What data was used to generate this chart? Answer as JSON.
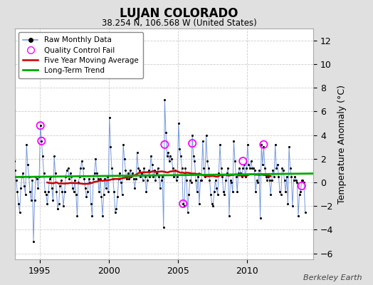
{
  "title": "LUJAN COLORADO",
  "subtitle": "38.254 N, 106.568 W (United States)",
  "ylabel": "Temperature Anomaly (°C)",
  "credit": "Berkeley Earth",
  "xlim": [
    1993.2,
    2014.8
  ],
  "ylim": [
    -6.5,
    13.0
  ],
  "yticks": [
    -6,
    -4,
    -2,
    0,
    2,
    4,
    6,
    8,
    10,
    12
  ],
  "xticks": [
    1995,
    2000,
    2005,
    2010
  ],
  "fig_bg_color": "#e0e0e0",
  "plot_bg": "#ffffff",
  "raw_line_color": "#7799dd",
  "raw_dot_color": "#000000",
  "ma_color": "#cc0000",
  "trend_color": "#00aa00",
  "qc_color": "#ff00ff",
  "raw_data": [
    [
      1993.042,
      3.5
    ],
    [
      1993.125,
      1.8
    ],
    [
      1993.208,
      1.0
    ],
    [
      1993.292,
      0.2
    ],
    [
      1993.375,
      -0.8
    ],
    [
      1993.458,
      -1.8
    ],
    [
      1993.542,
      -2.5
    ],
    [
      1993.625,
      -0.5
    ],
    [
      1993.708,
      0.5
    ],
    [
      1993.792,
      0.8
    ],
    [
      1993.875,
      -0.3
    ],
    [
      1993.958,
      -1.0
    ],
    [
      1994.042,
      3.2
    ],
    [
      1994.125,
      1.5
    ],
    [
      1994.208,
      0.5
    ],
    [
      1994.292,
      -0.8
    ],
    [
      1994.375,
      -1.5
    ],
    [
      1994.458,
      0.2
    ],
    [
      1994.542,
      -5.0
    ],
    [
      1994.625,
      -1.5
    ],
    [
      1994.708,
      0.5
    ],
    [
      1994.792,
      0.3
    ],
    [
      1994.875,
      -0.5
    ],
    [
      1994.958,
      0.5
    ],
    [
      1995.042,
      4.8
    ],
    [
      1995.125,
      3.5
    ],
    [
      1995.208,
      2.2
    ],
    [
      1995.292,
      0.8
    ],
    [
      1995.375,
      -0.8
    ],
    [
      1995.458,
      -1.0
    ],
    [
      1995.542,
      -1.8
    ],
    [
      1995.625,
      -0.8
    ],
    [
      1995.708,
      0.3
    ],
    [
      1995.792,
      0.5
    ],
    [
      1995.875,
      -0.5
    ],
    [
      1995.958,
      -1.5
    ],
    [
      1996.042,
      2.2
    ],
    [
      1996.125,
      0.8
    ],
    [
      1996.208,
      -0.8
    ],
    [
      1996.292,
      -2.2
    ],
    [
      1996.375,
      -1.8
    ],
    [
      1996.458,
      -0.3
    ],
    [
      1996.542,
      0.2
    ],
    [
      1996.625,
      -0.8
    ],
    [
      1996.708,
      -2.0
    ],
    [
      1996.792,
      -0.8
    ],
    [
      1996.875,
      0.5
    ],
    [
      1996.958,
      1.0
    ],
    [
      1997.042,
      1.2
    ],
    [
      1997.125,
      0.3
    ],
    [
      1997.208,
      0.8
    ],
    [
      1997.292,
      0.5
    ],
    [
      1997.375,
      -0.5
    ],
    [
      1997.458,
      -0.8
    ],
    [
      1997.542,
      0.2
    ],
    [
      1997.625,
      -1.0
    ],
    [
      1997.708,
      -2.8
    ],
    [
      1997.792,
      0.0
    ],
    [
      1997.875,
      0.5
    ],
    [
      1997.958,
      1.2
    ],
    [
      1998.042,
      1.8
    ],
    [
      1998.125,
      1.2
    ],
    [
      1998.208,
      0.3
    ],
    [
      1998.292,
      -0.5
    ],
    [
      1998.375,
      -1.2
    ],
    [
      1998.458,
      -0.8
    ],
    [
      1998.542,
      0.3
    ],
    [
      1998.625,
      0.0
    ],
    [
      1998.708,
      -1.8
    ],
    [
      1998.792,
      -2.8
    ],
    [
      1998.875,
      0.3
    ],
    [
      1998.958,
      0.8
    ],
    [
      1999.042,
      2.0
    ],
    [
      1999.125,
      0.8
    ],
    [
      1999.208,
      0.3
    ],
    [
      1999.292,
      -0.8
    ],
    [
      1999.375,
      0.3
    ],
    [
      1999.458,
      -1.2
    ],
    [
      1999.542,
      -2.8
    ],
    [
      1999.625,
      -1.0
    ],
    [
      1999.708,
      0.3
    ],
    [
      1999.792,
      -0.5
    ],
    [
      1999.875,
      0.5
    ],
    [
      1999.958,
      -0.8
    ],
    [
      2000.042,
      5.5
    ],
    [
      2000.125,
      3.0
    ],
    [
      2000.208,
      1.2
    ],
    [
      2000.292,
      0.3
    ],
    [
      2000.375,
      -0.8
    ],
    [
      2000.458,
      -2.5
    ],
    [
      2000.542,
      -2.2
    ],
    [
      2000.625,
      -1.2
    ],
    [
      2000.708,
      0.3
    ],
    [
      2000.792,
      0.8
    ],
    [
      2000.875,
      0.0
    ],
    [
      2000.958,
      -1.0
    ],
    [
      2001.042,
      3.2
    ],
    [
      2001.125,
      2.0
    ],
    [
      2001.208,
      1.0
    ],
    [
      2001.292,
      0.3
    ],
    [
      2001.375,
      0.8
    ],
    [
      2001.458,
      0.3
    ],
    [
      2001.542,
      1.0
    ],
    [
      2001.625,
      0.5
    ],
    [
      2001.708,
      0.8
    ],
    [
      2001.792,
      0.3
    ],
    [
      2001.875,
      -0.5
    ],
    [
      2001.958,
      0.3
    ],
    [
      2002.042,
      2.5
    ],
    [
      2002.125,
      1.2
    ],
    [
      2002.208,
      1.0
    ],
    [
      2002.292,
      0.5
    ],
    [
      2002.375,
      0.8
    ],
    [
      2002.458,
      0.2
    ],
    [
      2002.542,
      1.2
    ],
    [
      2002.625,
      0.5
    ],
    [
      2002.708,
      -0.8
    ],
    [
      2002.792,
      0.2
    ],
    [
      2002.875,
      1.0
    ],
    [
      2002.958,
      0.5
    ],
    [
      2003.042,
      2.2
    ],
    [
      2003.125,
      1.5
    ],
    [
      2003.208,
      0.5
    ],
    [
      2003.292,
      1.0
    ],
    [
      2003.375,
      0.2
    ],
    [
      2003.458,
      0.8
    ],
    [
      2003.542,
      1.2
    ],
    [
      2003.625,
      0.5
    ],
    [
      2003.708,
      -0.5
    ],
    [
      2003.792,
      0.2
    ],
    [
      2003.875,
      0.5
    ],
    [
      2003.958,
      -3.8
    ],
    [
      2004.042,
      7.0
    ],
    [
      2004.125,
      4.2
    ],
    [
      2004.208,
      2.2
    ],
    [
      2004.292,
      2.5
    ],
    [
      2004.375,
      1.8
    ],
    [
      2004.458,
      2.2
    ],
    [
      2004.542,
      2.0
    ],
    [
      2004.625,
      1.2
    ],
    [
      2004.708,
      0.5
    ],
    [
      2004.792,
      1.0
    ],
    [
      2004.875,
      0.2
    ],
    [
      2004.958,
      0.5
    ],
    [
      2005.042,
      5.0
    ],
    [
      2005.125,
      2.8
    ],
    [
      2005.208,
      2.2
    ],
    [
      2005.292,
      1.2
    ],
    [
      2005.375,
      -1.8
    ],
    [
      2005.458,
      -2.0
    ],
    [
      2005.542,
      1.2
    ],
    [
      2005.625,
      0.2
    ],
    [
      2005.708,
      -2.5
    ],
    [
      2005.792,
      -1.0
    ],
    [
      2005.875,
      0.2
    ],
    [
      2005.958,
      0.0
    ],
    [
      2006.042,
      4.0
    ],
    [
      2006.125,
      2.2
    ],
    [
      2006.208,
      1.8
    ],
    [
      2006.292,
      0.2
    ],
    [
      2006.375,
      -0.8
    ],
    [
      2006.458,
      0.5
    ],
    [
      2006.542,
      -1.8
    ],
    [
      2006.625,
      0.2
    ],
    [
      2006.708,
      0.2
    ],
    [
      2006.792,
      3.5
    ],
    [
      2006.875,
      1.2
    ],
    [
      2006.958,
      0.5
    ],
    [
      2007.042,
      4.0
    ],
    [
      2007.125,
      1.8
    ],
    [
      2007.208,
      1.2
    ],
    [
      2007.292,
      0.2
    ],
    [
      2007.375,
      -1.0
    ],
    [
      2007.458,
      -1.8
    ],
    [
      2007.542,
      -2.0
    ],
    [
      2007.625,
      -0.8
    ],
    [
      2007.708,
      0.2
    ],
    [
      2007.792,
      -0.5
    ],
    [
      2007.875,
      -1.0
    ],
    [
      2007.958,
      0.8
    ],
    [
      2008.042,
      3.2
    ],
    [
      2008.125,
      1.2
    ],
    [
      2008.208,
      0.5
    ],
    [
      2008.292,
      -0.8
    ],
    [
      2008.375,
      -1.0
    ],
    [
      2008.458,
      0.2
    ],
    [
      2008.542,
      0.8
    ],
    [
      2008.625,
      1.2
    ],
    [
      2008.708,
      -2.8
    ],
    [
      2008.792,
      0.2
    ],
    [
      2008.875,
      0.0
    ],
    [
      2008.958,
      -0.8
    ],
    [
      2009.042,
      3.5
    ],
    [
      2009.125,
      1.8
    ],
    [
      2009.208,
      0.5
    ],
    [
      2009.292,
      -0.8
    ],
    [
      2009.375,
      0.8
    ],
    [
      2009.458,
      1.2
    ],
    [
      2009.542,
      0.8
    ],
    [
      2009.625,
      0.5
    ],
    [
      2009.708,
      1.2
    ],
    [
      2009.792,
      1.5
    ],
    [
      2009.875,
      0.5
    ],
    [
      2009.958,
      1.2
    ],
    [
      2010.042,
      3.2
    ],
    [
      2010.125,
      1.5
    ],
    [
      2010.208,
      1.2
    ],
    [
      2010.292,
      1.8
    ],
    [
      2010.375,
      1.2
    ],
    [
      2010.458,
      1.2
    ],
    [
      2010.542,
      1.0
    ],
    [
      2010.625,
      -0.8
    ],
    [
      2010.708,
      0.2
    ],
    [
      2010.792,
      0.0
    ],
    [
      2010.875,
      1.0
    ],
    [
      2010.958,
      -3.0
    ],
    [
      2011.042,
      3.2
    ],
    [
      2011.125,
      1.5
    ],
    [
      2011.208,
      3.0
    ],
    [
      2011.292,
      1.2
    ],
    [
      2011.375,
      0.5
    ],
    [
      2011.458,
      0.2
    ],
    [
      2011.542,
      0.5
    ],
    [
      2011.625,
      0.2
    ],
    [
      2011.708,
      -1.0
    ],
    [
      2011.792,
      0.2
    ],
    [
      2011.875,
      1.0
    ],
    [
      2011.958,
      0.5
    ],
    [
      2012.042,
      3.2
    ],
    [
      2012.125,
      1.2
    ],
    [
      2012.208,
      1.5
    ],
    [
      2012.292,
      0.5
    ],
    [
      2012.375,
      -0.8
    ],
    [
      2012.458,
      -1.0
    ],
    [
      2012.542,
      1.2
    ],
    [
      2012.625,
      1.0
    ],
    [
      2012.708,
      0.2
    ],
    [
      2012.792,
      -0.8
    ],
    [
      2012.875,
      0.5
    ],
    [
      2012.958,
      -1.8
    ],
    [
      2013.042,
      3.0
    ],
    [
      2013.125,
      1.2
    ],
    [
      2013.208,
      0.5
    ],
    [
      2013.292,
      -2.0
    ],
    [
      2013.375,
      0.2
    ],
    [
      2013.458,
      0.5
    ],
    [
      2013.542,
      0.2
    ],
    [
      2013.625,
      0.0
    ],
    [
      2013.708,
      -2.8
    ],
    [
      2013.792,
      -1.0
    ],
    [
      2013.875,
      -0.8
    ],
    [
      2013.958,
      0.2
    ],
    [
      2014.042,
      0.2
    ],
    [
      2014.125,
      0.0
    ],
    [
      2014.208,
      -2.5
    ]
  ],
  "qc_fail_points": [
    [
      1995.042,
      4.8
    ],
    [
      1995.125,
      3.5
    ],
    [
      2004.042,
      3.2
    ],
    [
      2005.375,
      -1.8
    ],
    [
      2006.042,
      3.3
    ],
    [
      2009.708,
      1.8
    ],
    [
      2011.208,
      3.2
    ],
    [
      2013.958,
      -0.3
    ]
  ],
  "trend_x": [
    1993.0,
    2014.8
  ],
  "trend_y": [
    0.45,
    0.75
  ],
  "grid_color": "#cccccc",
  "spine_color": "#aaaaaa"
}
